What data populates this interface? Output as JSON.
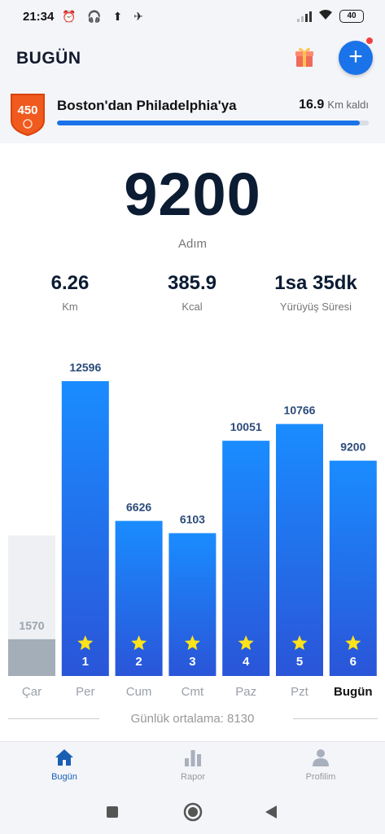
{
  "status_bar": {
    "time": "21:34",
    "left_icons": "⏰ 🎧 ⬆ ✈",
    "battery": "40"
  },
  "header": {
    "title": "BUGÜN",
    "add_label": "+"
  },
  "challenge": {
    "badge_number": "450",
    "title": "Boston'dan Philadelphia'ya",
    "remaining_km": "16.9",
    "remaining_unit": "Km kaldı",
    "progress_percent": 97
  },
  "today": {
    "steps": "9200",
    "steps_label": "Adım"
  },
  "stats": [
    {
      "value": "6.26",
      "label": "Km"
    },
    {
      "value": "385.9",
      "label": "Kcal"
    },
    {
      "value": "1sa 35dk",
      "label": "Yürüyüş Süresi"
    }
  ],
  "chart_data": {
    "type": "bar",
    "categories": [
      "Çar",
      "Per",
      "Cum",
      "Cmt",
      "Paz",
      "Pzt",
      "Bugün"
    ],
    "values": [
      1570,
      12596,
      6626,
      6103,
      10051,
      10766,
      9200
    ],
    "star_numbers": [
      "",
      "1",
      "2",
      "3",
      "4",
      "5",
      "6"
    ],
    "goal_reached": [
      false,
      true,
      true,
      true,
      true,
      true,
      true
    ],
    "goal_steps": 6000,
    "ylim": [
      0,
      12596
    ],
    "colors": {
      "bar_top": "#1a8cff",
      "bar_bottom": "#2a55d8",
      "inactive_bar": "#a3aeb8",
      "inactive_bg": "#eef0f3",
      "label": "#2b4b7a",
      "star": "#ffe21a"
    },
    "average_label": "Günlük ortalama: 8130"
  },
  "bottom_nav": [
    {
      "label": "Bugün",
      "icon": "home-icon",
      "active": true
    },
    {
      "label": "Rapor",
      "icon": "bar-chart-icon",
      "active": false
    },
    {
      "label": "Profilim",
      "icon": "person-icon",
      "active": false
    }
  ],
  "colors": {
    "accent": "#1a73e8",
    "badge": "#f05a1e",
    "dark_text": "#0b1c33"
  }
}
